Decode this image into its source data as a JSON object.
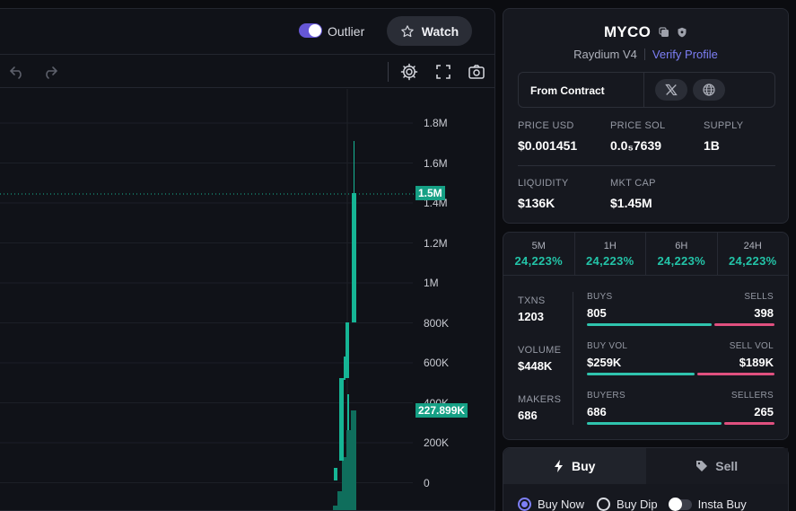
{
  "chart_header": {
    "outlier_label": "Outlier",
    "watch_label": "Watch"
  },
  "chart_axis": {
    "ticks": [
      "1.8M",
      "1.6M",
      "1.4M",
      "1.2M",
      "1M",
      "800K",
      "600K",
      "400K",
      "200K",
      "0"
    ],
    "current_price_tag": "1.5M",
    "volume_tag": "227.899K"
  },
  "token": {
    "name": "MYCO",
    "dex": "Raydium V4",
    "verify_label": "Verify Profile",
    "contract_label": "From Contract"
  },
  "stats": {
    "price_usd_label": "PRICE USD",
    "price_usd": "$0.001451",
    "price_sol_label": "PRICE SOL",
    "price_sol": "0.0₅7639",
    "supply_label": "SUPPLY",
    "supply": "1B",
    "liquidity_label": "LIQUIDITY",
    "liquidity": "$136K",
    "mkt_cap_label": "MKT CAP",
    "mkt_cap": "$1.45M"
  },
  "timeframes": [
    {
      "label": "5M",
      "value": "24,223%"
    },
    {
      "label": "1H",
      "value": "24,223%"
    },
    {
      "label": "6H",
      "value": "24,223%"
    },
    {
      "label": "24H",
      "value": "24,223%"
    }
  ],
  "activity": {
    "txns_label": "TXNS",
    "txns": "1203",
    "volume_label": "VOLUME",
    "volume": "$448K",
    "makers_label": "MAKERS",
    "makers": "686",
    "buys_label": "BUYS",
    "buys": "805",
    "sells_label": "SELLS",
    "sells": "398",
    "buy_vol_label": "BUY VOL",
    "buy_vol": "$259K",
    "sell_vol_label": "SELL VOL",
    "sell_vol": "$189K",
    "buyers_label": "BUYERS",
    "buyers": "686",
    "sellers_label": "SELLERS",
    "sellers": "265",
    "buys_fraction": 0.669,
    "buy_vol_fraction": 0.578,
    "buyers_fraction": 0.721
  },
  "trade": {
    "buy_tab": "Buy",
    "sell_tab": "Sell",
    "buy_now": "Buy Now",
    "buy_dip": "Buy Dip",
    "insta_buy": "Insta Buy"
  },
  "colors": {
    "up": "#2fc4ae",
    "down": "#e0507f",
    "accent": "#7d7ff5",
    "candle": "#16b595"
  }
}
